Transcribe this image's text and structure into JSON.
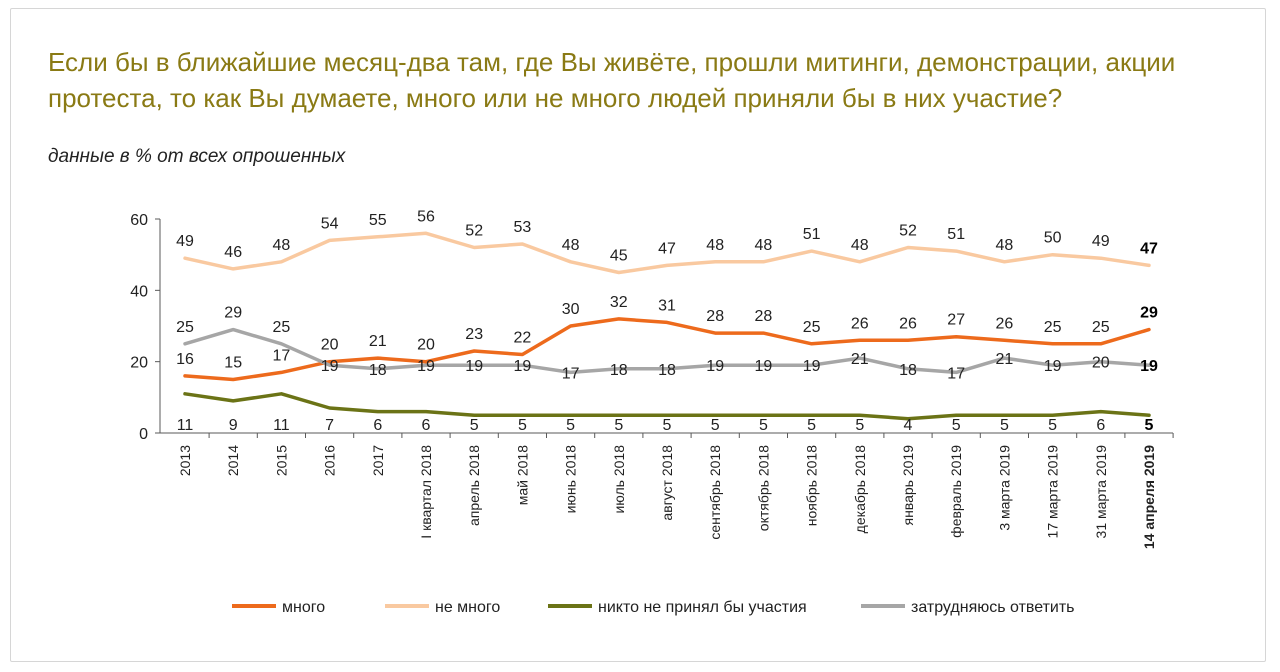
{
  "title": "Если бы в ближайшие месяц-два там, где Вы живёте, прошли митинги, демонстрации, акции протеста, то как Вы думаете, много или не много людей приняли бы в них участие?",
  "subtitle": "данные в % от всех опрошенных",
  "chart_data": {
    "type": "line",
    "ylim": [
      0,
      60
    ],
    "yticks": [
      0,
      20,
      40,
      60
    ],
    "grid": false,
    "legend_position": "bottom",
    "categories": [
      "2013",
      "2014",
      "2015",
      "2016",
      "2017",
      "I квартал 2018",
      "апрель 2018",
      "май 2018",
      "июнь 2018",
      "июль 2018",
      "август 2018",
      "сентябрь 2018",
      "октябрь 2018",
      "ноябрь 2018",
      "декабрь 2018",
      "январь 2019",
      "февраль 2019",
      "3 марта 2019",
      "17 марта 2019",
      "31 марта 2019",
      "14 апреля 2019"
    ],
    "highlight_last": true,
    "series": [
      {
        "name": "много",
        "color": "#ed6a1c",
        "values": [
          16,
          15,
          17,
          20,
          21,
          20,
          23,
          22,
          30,
          32,
          31,
          28,
          28,
          25,
          26,
          26,
          27,
          26,
          25,
          25,
          29
        ]
      },
      {
        "name": "не много",
        "color": "#f9c9a0",
        "values": [
          49,
          46,
          48,
          54,
          55,
          56,
          52,
          53,
          48,
          45,
          47,
          48,
          48,
          51,
          48,
          52,
          51,
          48,
          50,
          49,
          47
        ]
      },
      {
        "name": "никто не принял бы участия",
        "color": "#6b7316",
        "values": [
          11,
          9,
          11,
          7,
          6,
          6,
          5,
          5,
          5,
          5,
          5,
          5,
          5,
          5,
          5,
          4,
          5,
          5,
          5,
          6,
          5
        ]
      },
      {
        "name": "затрудняюсь ответить",
        "color": "#a6a6a6",
        "values": [
          25,
          29,
          25,
          19,
          18,
          19,
          19,
          19,
          17,
          18,
          18,
          19,
          19,
          19,
          21,
          18,
          17,
          21,
          19,
          20,
          19
        ]
      }
    ]
  }
}
